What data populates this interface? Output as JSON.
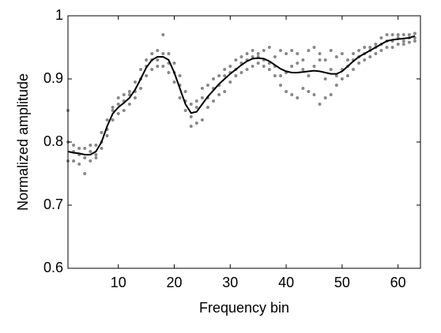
{
  "chart_data": {
    "type": "scatter",
    "xlabel": "Frequency bin",
    "ylabel": "Normalized amplitude",
    "xlim": [
      1,
      64
    ],
    "ylim": [
      0.6,
      1
    ],
    "xticks": [
      10,
      20,
      30,
      40,
      50,
      60
    ],
    "yticks": [
      0.6,
      0.7,
      0.8,
      0.9,
      1
    ],
    "x": [
      1,
      2,
      3,
      4,
      5,
      6,
      7,
      8,
      9,
      10,
      11,
      12,
      13,
      14,
      15,
      16,
      17,
      18,
      19,
      20,
      21,
      22,
      23,
      24,
      25,
      26,
      27,
      28,
      29,
      30,
      31,
      32,
      33,
      34,
      35,
      36,
      37,
      38,
      39,
      40,
      41,
      42,
      43,
      44,
      45,
      46,
      47,
      48,
      49,
      50,
      51,
      52,
      53,
      54,
      55,
      56,
      57,
      58,
      59,
      60,
      61,
      62,
      63
    ],
    "series": [
      {
        "color": "#888888",
        "values": [
          0.8,
          0.795,
          0.79,
          0.79,
          0.795,
          0.795,
          0.815,
          0.835,
          0.855,
          0.87,
          0.875,
          0.88,
          0.895,
          0.915,
          0.93,
          0.94,
          0.945,
          0.97,
          0.94,
          0.925,
          0.905,
          0.88,
          0.86,
          0.865,
          0.885,
          0.89,
          0.9,
          0.905,
          0.915,
          0.92,
          0.93,
          0.935,
          0.94,
          0.945,
          0.94,
          0.945,
          0.95,
          0.935,
          0.945,
          0.94,
          0.945,
          0.94,
          0.93,
          0.945,
          0.95,
          0.94,
          0.93,
          0.945,
          0.935,
          0.94,
          0.93,
          0.94,
          0.945,
          0.95,
          0.95,
          0.955,
          0.965,
          0.97,
          0.97,
          0.97,
          0.97,
          0.97,
          0.972
        ]
      },
      {
        "color": "#888888",
        "values": [
          0.77,
          0.77,
          0.765,
          0.75,
          0.77,
          0.775,
          0.79,
          0.81,
          0.835,
          0.845,
          0.85,
          0.86,
          0.87,
          0.885,
          0.905,
          0.915,
          0.92,
          0.92,
          0.91,
          0.895,
          0.87,
          0.85,
          0.825,
          0.83,
          0.835,
          0.855,
          0.865,
          0.875,
          0.88,
          0.895,
          0.905,
          0.91,
          0.915,
          0.92,
          0.925,
          0.92,
          0.915,
          0.905,
          0.89,
          0.88,
          0.875,
          0.87,
          0.885,
          0.88,
          0.875,
          0.86,
          0.87,
          0.875,
          0.89,
          0.9,
          0.905,
          0.915,
          0.925,
          0.93,
          0.935,
          0.94,
          0.945,
          0.95,
          0.95,
          0.955,
          0.955,
          0.958,
          0.96
        ]
      },
      {
        "color": "#888888",
        "values": [
          0.85,
          0.785,
          0.78,
          0.775,
          0.785,
          0.78,
          0.8,
          0.82,
          0.85,
          0.86,
          0.865,
          0.875,
          0.88,
          0.9,
          0.92,
          0.93,
          0.93,
          0.94,
          0.925,
          0.91,
          0.89,
          0.865,
          0.84,
          0.855,
          0.87,
          0.87,
          0.885,
          0.89,
          0.905,
          0.91,
          0.915,
          0.925,
          0.93,
          0.935,
          0.935,
          0.93,
          0.925,
          0.92,
          0.905,
          0.91,
          0.92,
          0.925,
          0.915,
          0.905,
          0.92,
          0.93,
          0.9,
          0.915,
          0.905,
          0.915,
          0.92,
          0.93,
          0.935,
          0.94,
          0.945,
          0.95,
          0.955,
          0.96,
          0.96,
          0.965,
          0.96,
          0.965,
          0.965
        ]
      },
      {
        "type": "line",
        "color": "#000000",
        "values": [
          0.785,
          0.783,
          0.782,
          0.78,
          0.78,
          0.785,
          0.8,
          0.825,
          0.845,
          0.855,
          0.862,
          0.87,
          0.883,
          0.9,
          0.918,
          0.93,
          0.935,
          0.935,
          0.93,
          0.91,
          0.885,
          0.86,
          0.846,
          0.848,
          0.86,
          0.872,
          0.882,
          0.892,
          0.9,
          0.908,
          0.915,
          0.922,
          0.928,
          0.932,
          0.933,
          0.932,
          0.928,
          0.922,
          0.916,
          0.912,
          0.91,
          0.91,
          0.911,
          0.912,
          0.913,
          0.912,
          0.91,
          0.908,
          0.908,
          0.912,
          0.92,
          0.928,
          0.935,
          0.94,
          0.945,
          0.95,
          0.955,
          0.96,
          0.962,
          0.963,
          0.964,
          0.965,
          0.968
        ]
      }
    ]
  }
}
